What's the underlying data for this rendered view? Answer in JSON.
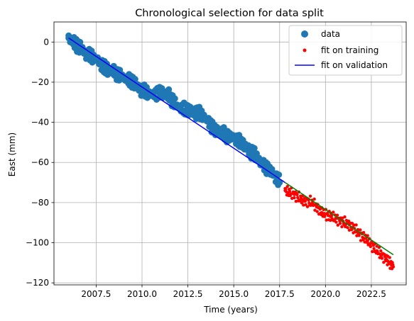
{
  "chart_data": {
    "type": "scatter",
    "title": "Chronological selection for data split",
    "xlabel": "Time (years)",
    "ylabel": "East (mm)",
    "xlim": [
      2005.2,
      2024.4
    ],
    "ylim": [
      -121,
      10
    ],
    "xticks": [
      2007.5,
      2010.0,
      2012.5,
      2015.0,
      2017.5,
      2020.0,
      2022.5
    ],
    "xtick_labels": [
      "2007.5",
      "2010.0",
      "2012.5",
      "2015.0",
      "2017.5",
      "2020.0",
      "2022.5"
    ],
    "yticks": [
      0,
      -20,
      -40,
      -60,
      -80,
      -100,
      -120
    ],
    "ytick_labels": [
      "0",
      "−20",
      "−40",
      "−60",
      "−80",
      "−100",
      "−120"
    ],
    "grid": true,
    "legend_position": "top-right",
    "colors": {
      "data": "#1f77b4",
      "fit_on_training": "#ff0000",
      "fit_on_validation": "#0000ff",
      "validation_trend": "#008000"
    },
    "series": [
      {
        "name": "data",
        "kind": "scatter",
        "x": [
          2006.0,
          2006.5,
          2007.0,
          2007.5,
          2008.0,
          2008.5,
          2009.0,
          2009.5,
          2010.0,
          2010.5,
          2011.0,
          2011.5,
          2012.0,
          2012.5,
          2013.0,
          2013.5,
          2014.0,
          2014.5,
          2015.0,
          2015.5,
          2016.0,
          2016.5,
          2017.0,
          2017.5
        ],
        "y": [
          2,
          -2,
          -6,
          -8,
          -13,
          -15,
          -18,
          -20,
          -24,
          -26,
          -25,
          -27,
          -33,
          -34,
          -35,
          -38,
          -44,
          -46,
          -48,
          -51,
          -55,
          -60,
          -64,
          -70
        ]
      },
      {
        "name": "fit on training",
        "kind": "scatter",
        "x": [
          2017.8,
          2018.3,
          2018.8,
          2019.3,
          2019.8,
          2020.3,
          2020.8,
          2021.3,
          2021.8,
          2022.3,
          2022.8,
          2023.3,
          2023.7
        ],
        "y": [
          -74,
          -76,
          -79,
          -80,
          -85,
          -87,
          -89,
          -91,
          -95,
          -99,
          -104,
          -108,
          -112
        ]
      },
      {
        "name": "fit on validation",
        "kind": "line",
        "x": [
          2006.0,
          2017.8
        ],
        "y": [
          2,
          -70
        ]
      },
      {
        "name": "",
        "kind": "line",
        "x": [
          2017.8,
          2023.7
        ],
        "y": [
          -70,
          -106
        ]
      }
    ]
  }
}
